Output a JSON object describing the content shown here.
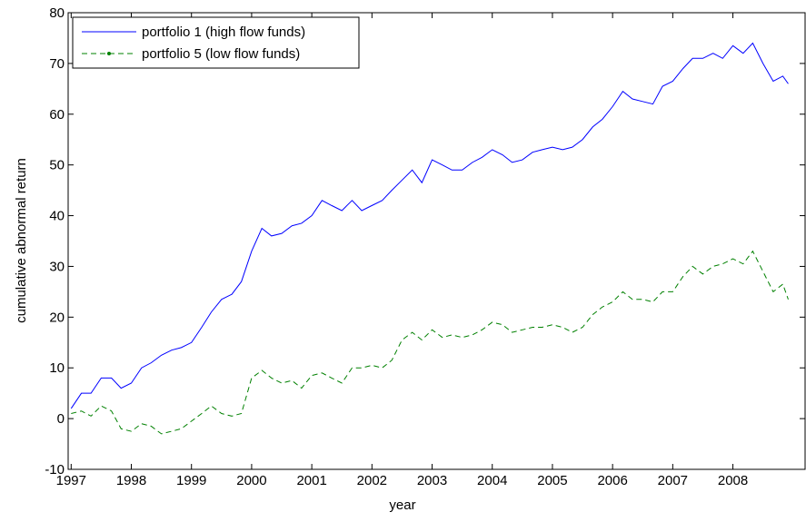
{
  "chart_data": {
    "type": "line",
    "x_label": "year",
    "y_label": "cumulative abnormal return",
    "x": [
      1997,
      1997.17,
      1997.33,
      1997.5,
      1997.67,
      1997.83,
      1998,
      1998.17,
      1998.33,
      1998.5,
      1998.67,
      1998.83,
      1999,
      1999.17,
      1999.33,
      1999.5,
      1999.67,
      1999.83,
      2000,
      2000.17,
      2000.33,
      2000.5,
      2000.67,
      2000.83,
      2001,
      2001.17,
      2001.33,
      2001.5,
      2001.67,
      2001.83,
      2002,
      2002.17,
      2002.33,
      2002.5,
      2002.67,
      2002.83,
      2003,
      2003.17,
      2003.33,
      2003.5,
      2003.67,
      2003.83,
      2004,
      2004.17,
      2004.33,
      2004.5,
      2004.67,
      2004.83,
      2005,
      2005.17,
      2005.33,
      2005.5,
      2005.67,
      2005.83,
      2006,
      2006.17,
      2006.33,
      2006.5,
      2006.67,
      2006.83,
      2007,
      2007.17,
      2007.33,
      2007.5,
      2007.67,
      2007.83,
      2008,
      2008.17,
      2008.33,
      2008.5,
      2008.67,
      2008.83,
      2008.92
    ],
    "series": [
      {
        "name": "portfolio 1 (high flow funds)",
        "color": "#0000ff",
        "dash": false,
        "values": [
          2,
          5,
          5,
          8,
          8,
          6,
          7,
          10,
          11,
          12.5,
          13.5,
          14,
          15,
          18,
          21,
          23.5,
          24.5,
          27,
          33,
          37.5,
          36,
          36.5,
          38,
          38.5,
          40,
          43,
          42,
          41,
          43,
          41,
          42,
          43,
          45,
          47,
          49,
          46.5,
          51,
          50,
          49,
          49,
          50.5,
          51.5,
          53,
          52,
          50.5,
          51,
          52.5,
          53,
          53.5,
          53,
          53.5,
          55,
          57.5,
          59,
          61.5,
          64.5,
          63,
          62.5,
          62,
          65.5,
          66.5,
          69,
          71,
          71,
          72,
          71,
          73.5,
          72,
          74,
          70,
          66.5,
          67.5,
          66
        ]
      },
      {
        "name": "portfolio 5 (low flow funds)",
        "color": "#008000",
        "dash": true,
        "values": [
          1,
          1.5,
          0.5,
          2.5,
          1.5,
          -2,
          -2.5,
          -1,
          -1.5,
          -3,
          -2.5,
          -2,
          -0.5,
          1,
          2.5,
          1,
          0.5,
          1,
          8,
          9.5,
          8,
          7,
          7.5,
          6,
          8.5,
          9,
          8,
          7,
          10,
          10,
          10.5,
          10,
          11.5,
          15.5,
          17,
          15.5,
          17.5,
          16,
          16.5,
          16,
          16.5,
          17.5,
          19,
          18.5,
          17,
          17.5,
          18,
          18,
          18.5,
          18,
          17,
          18,
          20.5,
          22,
          23,
          25,
          23.5,
          23.5,
          23,
          25,
          25,
          28,
          30,
          28.5,
          30,
          30.5,
          31.5,
          30.5,
          33,
          29,
          25,
          26.5,
          23.5
        ]
      }
    ],
    "xlim": [
      1996.95,
      2009.2
    ],
    "xticks": [
      1997,
      1998,
      1999,
      2000,
      2001,
      2002,
      2003,
      2004,
      2005,
      2006,
      2007,
      2008
    ],
    "ylim": [
      -10,
      80
    ],
    "yticks": [
      -10,
      0,
      10,
      20,
      30,
      40,
      50,
      60,
      70,
      80
    ],
    "grid": false,
    "legend": "upper left"
  }
}
